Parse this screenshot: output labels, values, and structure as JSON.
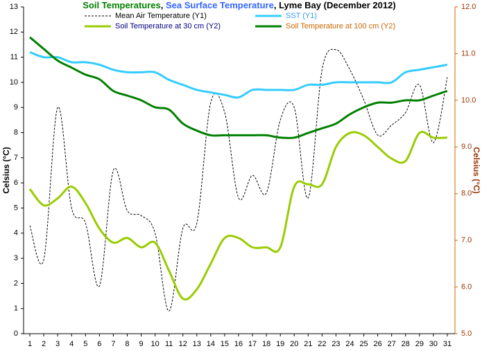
{
  "chart_data": {
    "type": "line",
    "title": [
      "Soil Temperatures",
      ", ",
      "Sea Surface Temperature",
      ", Lyme Bay (December 2012)"
    ],
    "title_colors": [
      "#008000",
      "#000000",
      "#3366ff",
      "#000000"
    ],
    "ylabel": "Celsius (°C)",
    "y2label": "Celsius (°C)",
    "x": [
      1,
      2,
      3,
      4,
      5,
      6,
      7,
      8,
      9,
      10,
      11,
      12,
      13,
      14,
      15,
      16,
      17,
      18,
      19,
      20,
      21,
      22,
      23,
      24,
      25,
      26,
      27,
      28,
      29,
      30,
      31
    ],
    "xlim": [
      0.55,
      31.55
    ],
    "ylim": [
      0,
      13
    ],
    "yticks": [
      0,
      1,
      2,
      3,
      4,
      5,
      6,
      7,
      8,
      9,
      10,
      11,
      12,
      13
    ],
    "y2lim": [
      5,
      12
    ],
    "y2ticks": [
      {
        "value": 5,
        "label": "5.0"
      },
      {
        "value": 6,
        "label": "6.0"
      },
      {
        "value": 7,
        "label": "7.0"
      },
      {
        "value": 8,
        "label": "8.0"
      },
      {
        "value": 9,
        "label": "9.0"
      },
      {
        "value": 10,
        "label": "10.0"
      },
      {
        "value": 11,
        "label": "11.0"
      },
      {
        "value": 12,
        "label": "12.0"
      }
    ],
    "series": [
      {
        "name": "Mean Air Temperature (Y1)",
        "color": "#000000",
        "label_color": "#000000",
        "dashed": true,
        "width": 1,
        "values": [
          4.3,
          2.95,
          9.0,
          5.0,
          4.4,
          1.9,
          6.5,
          4.9,
          4.7,
          4.0,
          0.9,
          4.2,
          4.4,
          9.2,
          8.8,
          5.4,
          6.3,
          5.6,
          8.5,
          9.0,
          5.4,
          10.5,
          11.3,
          10.5,
          9.3,
          7.9,
          8.3,
          8.8,
          9.9,
          7.6,
          10.2
        ]
      },
      {
        "name": "SST (Y1)",
        "color": "#33ccff",
        "label_color": "#3399ff",
        "width": 3,
        "values": [
          11.2,
          11.0,
          11.0,
          10.8,
          10.8,
          10.7,
          10.5,
          10.4,
          10.4,
          10.4,
          10.1,
          9.9,
          9.7,
          9.6,
          9.5,
          9.4,
          9.7,
          9.7,
          9.7,
          9.7,
          9.9,
          9.9,
          10.0,
          10.0,
          10.0,
          10.0,
          10.0,
          10.4,
          10.5,
          10.6,
          10.7
        ]
      },
      {
        "name": "Soil Temperature at 30 cm (Y2)",
        "color": "#99cc00",
        "label_color": "#000080",
        "width": 3,
        "axis": "y2",
        "values": [
          8.1,
          7.75,
          7.9,
          8.15,
          7.8,
          7.25,
          6.95,
          7.05,
          6.85,
          6.95,
          6.35,
          5.75,
          5.95,
          6.5,
          7.05,
          7.05,
          6.85,
          6.85,
          6.85,
          8.15,
          8.2,
          8.2,
          9.0,
          9.3,
          9.25,
          9.0,
          8.75,
          8.7,
          9.3,
          9.2,
          9.2
        ]
      },
      {
        "name": "Soil Temperature at 100 cm (Y2)",
        "color": "#008000",
        "label_color": "#cc6600",
        "width": 3,
        "axis": "y2",
        "values": [
          11.35,
          11.1,
          10.85,
          10.7,
          10.55,
          10.45,
          10.2,
          10.1,
          10.0,
          9.85,
          9.8,
          9.5,
          9.35,
          9.25,
          9.25,
          9.25,
          9.25,
          9.25,
          9.2,
          9.2,
          9.3,
          9.4,
          9.5,
          9.7,
          9.85,
          9.95,
          9.95,
          10.0,
          10.0,
          10.1,
          10.2
        ]
      }
    ]
  }
}
